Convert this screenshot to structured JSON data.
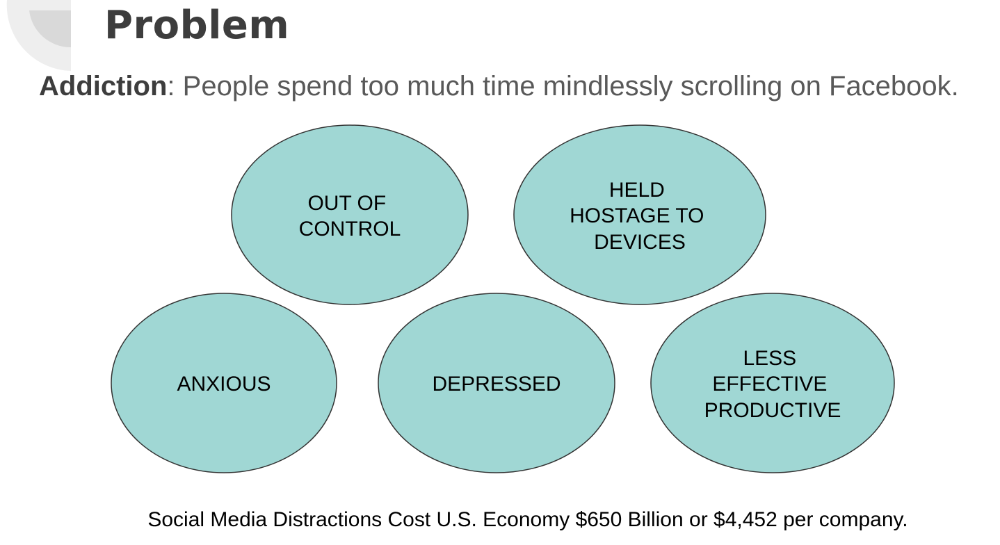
{
  "slide": {
    "title": "Problem",
    "subtitle": {
      "term": "Addiction",
      "text": ": People spend too much time mindlessly scrolling on Facebook."
    },
    "footer": "Social Media Distractions Cost U.S. Economy $650 Billion or $4,452 per company."
  },
  "diagram": {
    "fill_color": "#a0d7d4",
    "stroke_color": "#333333",
    "nodes": [
      {
        "id": "out-of-control",
        "lines": [
          "OUT OF",
          "CONTROL"
        ]
      },
      {
        "id": "held-hostage",
        "lines": [
          "HELD",
          "HOSTAGE TO",
          "DEVICES"
        ]
      },
      {
        "id": "anxious",
        "lines": [
          "ANXIOUS"
        ]
      },
      {
        "id": "depressed",
        "lines": [
          "DEPRESSED"
        ]
      },
      {
        "id": "less-effective",
        "lines": [
          "LESS",
          "EFFECTIVE",
          "PRODUCTIVE"
        ]
      }
    ]
  },
  "colors": {
    "title": "#3d3d3d",
    "subtitle": "#595959",
    "decor_light": "#eeeeee",
    "decor_dark": "#d9d9d9"
  }
}
